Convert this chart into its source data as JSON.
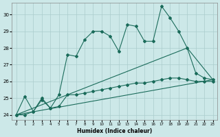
{
  "xlabel": "Humidex (Indice chaleur)",
  "bg_color": "#cce8e8",
  "grid_color": "#aacccc",
  "line_color": "#1a6b5a",
  "xlim": [
    -0.5,
    23.5
  ],
  "ylim": [
    23.7,
    30.7
  ],
  "xticks": [
    0,
    1,
    2,
    3,
    4,
    5,
    6,
    7,
    8,
    9,
    10,
    11,
    12,
    13,
    14,
    15,
    16,
    17,
    18,
    19,
    20,
    21,
    22,
    23
  ],
  "yticks": [
    24,
    25,
    26,
    27,
    28,
    29,
    30
  ],
  "series1_x": [
    0,
    1,
    2,
    3,
    4,
    5,
    6,
    7,
    8,
    9,
    10,
    11,
    12,
    13,
    14,
    15,
    16,
    17,
    18,
    19,
    20,
    21,
    22,
    23
  ],
  "series1_y": [
    24.0,
    25.1,
    24.2,
    25.0,
    24.4,
    25.2,
    27.6,
    27.5,
    28.5,
    29.0,
    29.0,
    28.7,
    27.8,
    29.4,
    29.3,
    28.4,
    28.4,
    30.5,
    29.8,
    29.0,
    28.0,
    26.5,
    26.2,
    26.1
  ],
  "series2_x": [
    0,
    1,
    2,
    3,
    4,
    5,
    6,
    7,
    8,
    9,
    10,
    11,
    12,
    13,
    14,
    15,
    16,
    17,
    18,
    19,
    20,
    21,
    22,
    23
  ],
  "series2_y": [
    24.0,
    24.0,
    24.2,
    24.9,
    24.4,
    24.5,
    25.2,
    25.2,
    25.3,
    25.4,
    25.5,
    25.6,
    25.7,
    25.8,
    25.9,
    25.9,
    26.0,
    26.1,
    26.2,
    26.2,
    26.1,
    26.0,
    26.0,
    26.0
  ],
  "series3_x": [
    0,
    23
  ],
  "series3_y": [
    24.0,
    26.1
  ],
  "series4_x": [
    0,
    20,
    23
  ],
  "series4_y": [
    24.0,
    28.0,
    26.1
  ]
}
